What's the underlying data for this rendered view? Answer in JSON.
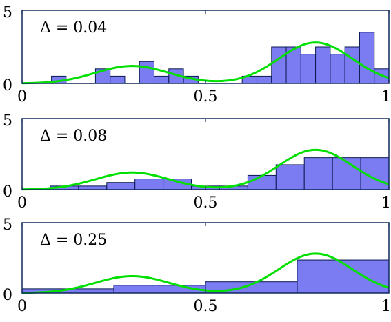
{
  "chart_data": [
    {
      "type": "bar",
      "title": "Δ = 0.04",
      "bin_width": 0.04,
      "x": [
        0.08,
        0.12,
        0.16,
        0.2,
        0.24,
        0.28,
        0.32,
        0.36,
        0.4,
        0.44,
        0.48,
        0.52,
        0.56,
        0.6,
        0.64,
        0.68,
        0.72,
        0.76,
        0.8,
        0.84,
        0.88,
        0.92,
        0.96
      ],
      "bin_starts": [
        0.08,
        0.12,
        0.16,
        0.2,
        0.24,
        0.28,
        0.32,
        0.36,
        0.4,
        0.44,
        0.48,
        0.52,
        0.56,
        0.6,
        0.64,
        0.68,
        0.72,
        0.76,
        0.8,
        0.84,
        0.88,
        0.92,
        0.96
      ],
      "values": [
        0.5,
        0,
        0,
        1.0,
        0.5,
        0,
        1.5,
        0.5,
        1.0,
        0.5,
        0,
        0,
        0,
        0.5,
        0.5,
        2.5,
        2.5,
        2.0,
        2.5,
        2.0,
        2.5,
        3.5,
        1.0
      ],
      "xlim": [
        0,
        1
      ],
      "ylim": [
        0,
        5
      ],
      "x_ticks": [
        "0",
        "0.5",
        "1"
      ],
      "y_ticks": [
        "0",
        "5"
      ]
    },
    {
      "type": "bar",
      "title": "Δ = 0.08",
      "bin_width": 0.0769,
      "bin_starts": [
        0.0769,
        0.1538,
        0.2308,
        0.3077,
        0.3846,
        0.4615,
        0.5385,
        0.6154,
        0.6923,
        0.7692,
        0.8462,
        0.9231
      ],
      "values": [
        0.25,
        0.25,
        0.5,
        0.75,
        0.75,
        0.25,
        0.25,
        1.0,
        1.75,
        2.25,
        2.25,
        2.25
      ],
      "xlim": [
        0,
        1
      ],
      "ylim": [
        0,
        5
      ],
      "x_ticks": [
        "0",
        "0.5",
        "1"
      ],
      "y_ticks": [
        "0",
        "5"
      ]
    },
    {
      "type": "bar",
      "title": "Δ = 0.25",
      "bin_width": 0.25,
      "bin_starts": [
        0,
        0.25,
        0.5,
        0.75
      ],
      "values": [
        0.3,
        0.55,
        0.8,
        2.35
      ],
      "xlim": [
        0,
        1
      ],
      "ylim": [
        0,
        5
      ],
      "x_ticks": [
        "0",
        "0.5",
        "1"
      ],
      "y_ticks": [
        "0",
        "5"
      ]
    }
  ],
  "curve_color": "#00e000",
  "bar_fill": "#7b7bf2",
  "axis_color": "#10285a"
}
